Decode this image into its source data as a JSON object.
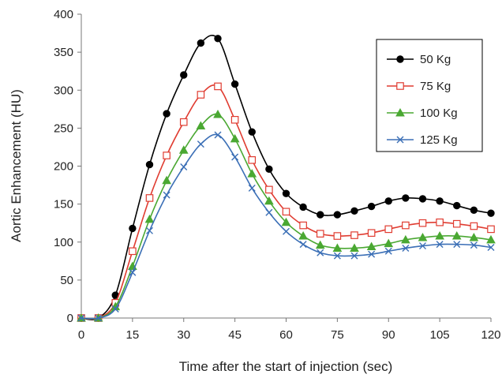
{
  "chart_data": {
    "type": "line",
    "title": "",
    "xlabel": "Time after the start of injection (sec)",
    "ylabel": "Aortic Enhancement (HU)",
    "xlim": [
      0,
      120
    ],
    "ylim": [
      0,
      400
    ],
    "xticks": [
      0,
      15,
      30,
      45,
      60,
      75,
      90,
      105,
      120
    ],
    "yticks": [
      0,
      50,
      100,
      150,
      200,
      250,
      300,
      350,
      400
    ],
    "grid": false,
    "legend_position": "top-right",
    "x": [
      0,
      5,
      10,
      15,
      20,
      25,
      30,
      35,
      40,
      45,
      50,
      55,
      60,
      65,
      70,
      75,
      80,
      85,
      90,
      95,
      100,
      105,
      110,
      115,
      120
    ],
    "series": [
      {
        "name": "50 Kg",
        "color": "#000000",
        "marker": "circle",
        "values": [
          0,
          0,
          30,
          118,
          202,
          269,
          320,
          362,
          368,
          308,
          245,
          196,
          164,
          146,
          136,
          136,
          141,
          147,
          154,
          158,
          157,
          154,
          148,
          142,
          138
        ]
      },
      {
        "name": "75 Kg",
        "color": "#e03c31",
        "marker": "square-open",
        "values": [
          0,
          0,
          20,
          88,
          158,
          214,
          258,
          294,
          305,
          261,
          208,
          169,
          140,
          122,
          111,
          108,
          109,
          112,
          117,
          122,
          125,
          126,
          124,
          121,
          117
        ]
      },
      {
        "name": "100 Kg",
        "color": "#4aa832",
        "marker": "triangle",
        "values": [
          0,
          0,
          15,
          68,
          130,
          181,
          221,
          253,
          268,
          236,
          190,
          154,
          126,
          108,
          96,
          92,
          92,
          94,
          98,
          103,
          106,
          108,
          108,
          106,
          103
        ]
      },
      {
        "name": "125 Kg",
        "color": "#3b6fb6",
        "marker": "x",
        "values": [
          0,
          0,
          12,
          60,
          115,
          162,
          199,
          229,
          241,
          212,
          171,
          139,
          114,
          97,
          86,
          82,
          82,
          84,
          88,
          92,
          95,
          97,
          97,
          96,
          93
        ]
      }
    ]
  }
}
